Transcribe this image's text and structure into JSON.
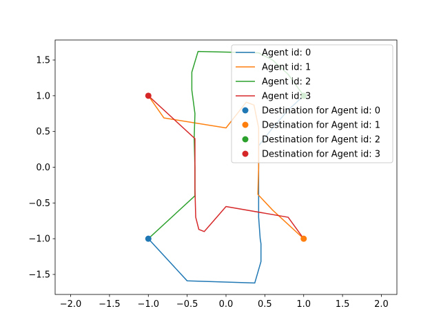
{
  "chart_data": {
    "type": "line",
    "title": "",
    "xlabel": "",
    "ylabel": "",
    "xlim": [
      -2.2,
      2.2
    ],
    "ylim": [
      -1.78,
      1.78
    ],
    "xticks": [
      -2.0,
      -1.5,
      -1.0,
      -0.5,
      0.0,
      0.5,
      1.0,
      1.5,
      2.0
    ],
    "yticks": [
      -1.5,
      -1.0,
      -0.5,
      0.0,
      0.5,
      1.0,
      1.5
    ],
    "xtick_labels": [
      "−2.0",
      "−1.5",
      "−1.0",
      "−0.5",
      "0.0",
      "0.5",
      "1.0",
      "1.5",
      "2.0"
    ],
    "ytick_labels": [
      "−1.5",
      "−1.0",
      "−0.5",
      "0.0",
      "0.5",
      "1.0",
      "1.5"
    ],
    "grid": false,
    "legend_position": "top-right",
    "series": [
      {
        "name": "Agent id: 0",
        "color": "#1f77b4",
        "points": [
          [
            -1.0,
            -1.0
          ],
          [
            -0.5,
            -1.59
          ],
          [
            0.37,
            -1.62
          ],
          [
            0.45,
            -1.32
          ],
          [
            0.45,
            -1.07
          ],
          [
            0.44,
            -1.0
          ],
          [
            0.42,
            -0.7
          ],
          [
            0.42,
            -0.4
          ],
          [
            0.42,
            -0.2
          ],
          [
            0.42,
            0.0
          ],
          [
            0.42,
            0.2
          ],
          [
            0.42,
            0.3
          ],
          [
            0.6,
            0.55
          ],
          [
            0.8,
            0.8
          ],
          [
            1.0,
            1.0
          ]
        ]
      },
      {
        "name": "Agent id: 1",
        "color": "#ff7f0e",
        "points": [
          [
            -1.0,
            1.0
          ],
          [
            -0.8,
            0.69
          ],
          [
            0.0,
            0.55
          ],
          [
            0.26,
            0.91
          ],
          [
            0.36,
            0.87
          ],
          [
            0.42,
            0.55
          ],
          [
            0.42,
            0.3
          ],
          [
            0.42,
            0.0
          ],
          [
            0.41,
            -0.38
          ],
          [
            0.6,
            -0.6
          ],
          [
            1.0,
            -1.0
          ]
        ]
      },
      {
        "name": "Agent id: 2",
        "color": "#2ca02c",
        "points": [
          [
            -1.0,
            -1.0
          ],
          [
            -0.4,
            -0.4
          ],
          [
            -0.4,
            0.0
          ],
          [
            -0.41,
            0.4
          ],
          [
            -0.4,
            0.75
          ],
          [
            -0.44,
            1.08
          ],
          [
            -0.44,
            1.33
          ],
          [
            -0.36,
            1.62
          ],
          [
            0.42,
            1.6
          ],
          [
            0.6,
            1.5
          ],
          [
            0.8,
            1.3
          ],
          [
            1.0,
            1.0
          ]
        ]
      },
      {
        "name": "Agent id: 3",
        "color": "#d62728",
        "points": [
          [
            -1.0,
            1.0
          ],
          [
            -0.4,
            0.4
          ],
          [
            -0.4,
            -0.3
          ],
          [
            -0.39,
            -0.7
          ],
          [
            -0.35,
            -0.87
          ],
          [
            -0.28,
            -0.9
          ],
          [
            -0.16,
            -0.75
          ],
          [
            0.0,
            -0.55
          ],
          [
            0.8,
            -0.7
          ],
          [
            1.0,
            -1.0
          ]
        ]
      }
    ],
    "destinations": [
      {
        "name": "Destination for Agent id: 0",
        "color": "#1f77b4",
        "x": -1.0,
        "y": -1.0
      },
      {
        "name": "Destination for Agent id: 1",
        "color": "#ff7f0e",
        "x": 1.0,
        "y": -1.0
      },
      {
        "name": "Destination for Agent id: 2",
        "color": "#2ca02c",
        "x": 1.0,
        "y": 1.0
      },
      {
        "name": "Destination for Agent id: 3",
        "color": "#d62728",
        "x": -1.0,
        "y": 1.0
      }
    ]
  }
}
